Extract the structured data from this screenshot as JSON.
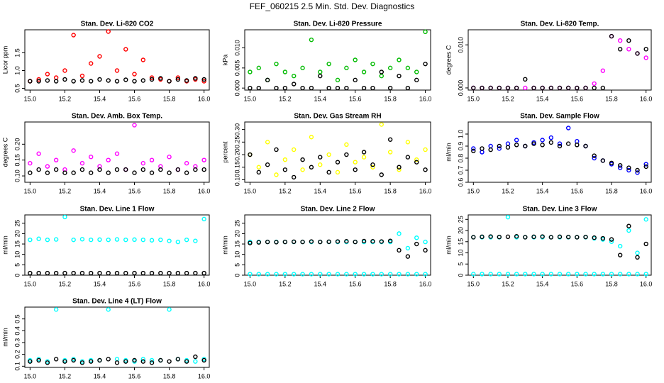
{
  "title": "FEF_060215  2.5 Min. Std. Dev. Diagnostics",
  "chart_data": [
    {
      "type": "scatter",
      "title": "Stan. Dev. Li-820 CO2",
      "ylabel": "Licor ppm",
      "x": [
        15.0,
        15.05,
        15.1,
        15.15,
        15.2,
        15.25,
        15.3,
        15.35,
        15.4,
        15.45,
        15.5,
        15.55,
        15.6,
        15.65,
        15.7,
        15.75,
        15.8,
        15.85,
        15.9,
        15.95,
        16.0
      ],
      "xlim": [
        14.97,
        16.03
      ],
      "xticks": [
        {
          "value": 15.0,
          "label": "15.0"
        },
        15.2,
        15.4,
        15.6,
        15.8,
        {
          "value": 16.0,
          "label": "16.0"
        }
      ],
      "ylim": [
        0.45,
        2.15
      ],
      "yticks": [
        0.5,
        {
          "value": 1.0,
          "label": "1.0"
        },
        1.5
      ],
      "series": [
        {
          "color": "#ff0000",
          "values": [
            0.7,
            0.75,
            0.9,
            0.8,
            1.0,
            2.0,
            0.85,
            1.2,
            1.4,
            2.1,
            1.0,
            1.6,
            0.9,
            1.3,
            0.8,
            0.75,
            0.7,
            0.8,
            0.7,
            0.75,
            0.7
          ]
        },
        {
          "color": "#000000",
          "values": [
            0.7,
            0.7,
            0.72,
            0.7,
            0.75,
            0.7,
            0.72,
            0.7,
            0.75,
            0.72,
            0.7,
            0.74,
            0.7,
            0.72,
            0.75,
            0.78,
            0.7,
            0.75,
            0.72,
            0.78,
            0.75
          ]
        }
      ]
    },
    {
      "type": "scatter",
      "title": "Stan. Dev. Li-820 Pressure",
      "ylabel": "kPa",
      "x": [
        15.0,
        15.05,
        15.1,
        15.15,
        15.2,
        15.25,
        15.3,
        15.35,
        15.4,
        15.45,
        15.5,
        15.55,
        15.6,
        15.65,
        15.7,
        15.75,
        15.8,
        15.85,
        15.9,
        15.95,
        16.0
      ],
      "xlim": [
        14.97,
        16.03
      ],
      "xticks": [
        {
          "value": 15.0,
          "label": "15.0"
        },
        15.2,
        15.4,
        15.6,
        15.8,
        {
          "value": 16.0,
          "label": "16.0"
        }
      ],
      "ylim": [
        -0.0005,
        0.0145
      ],
      "yticks": [
        {
          "value": 0,
          "label": "0.000"
        },
        0.005,
        {
          "value": 0.01,
          "label": "0.010"
        }
      ],
      "series": [
        {
          "color": "#00bb00",
          "values": [
            0.004,
            0.005,
            0.002,
            0.006,
            0.004,
            0.003,
            0.005,
            0.012,
            0.004,
            0.006,
            0.002,
            0.005,
            0.007,
            0.004,
            0.006,
            0.003,
            0.005,
            0.007,
            0.005,
            0.004,
            0.014
          ]
        },
        {
          "color": "#000000",
          "values": [
            0,
            0,
            0.002,
            0,
            0,
            0.001,
            0,
            0,
            0.003,
            0,
            0,
            0,
            0.002,
            0,
            0,
            0.004,
            0,
            0.003,
            0,
            0.002,
            0.006
          ]
        }
      ]
    },
    {
      "type": "scatter",
      "title": "Stan. Dev. Li-820 Temp.",
      "ylabel": "degrees C",
      "x": [
        15.0,
        15.05,
        15.1,
        15.15,
        15.2,
        15.25,
        15.3,
        15.35,
        15.4,
        15.45,
        15.5,
        15.55,
        15.6,
        15.65,
        15.7,
        15.75,
        15.8,
        15.85,
        15.9,
        15.95,
        16.0
      ],
      "xlim": [
        14.97,
        16.03
      ],
      "xticks": [
        {
          "value": 15.0,
          "label": "15.0"
        },
        15.2,
        15.4,
        15.6,
        15.8,
        {
          "value": 16.0,
          "label": "16.0"
        }
      ],
      "ylim": [
        -0.0005,
        0.0135
      ],
      "yticks": [
        {
          "value": 0,
          "label": "0.000"
        },
        {
          "value": 0.01,
          "label": "0.010"
        }
      ],
      "series": [
        {
          "color": "#ff00ff",
          "values": [
            0,
            0,
            0,
            0,
            0,
            0,
            0,
            0,
            0,
            0,
            0,
            0,
            0,
            0,
            0.001,
            0.004,
            0.012,
            0.011,
            0.009,
            0.008,
            0.007
          ]
        },
        {
          "color": "#000000",
          "values": [
            0,
            0,
            0,
            0,
            0,
            0,
            0.002,
            0,
            0,
            0,
            0,
            0,
            0,
            0,
            0,
            0,
            0.012,
            0.009,
            0.011,
            0.008,
            0.009
          ]
        }
      ]
    },
    {
      "type": "scatter",
      "title": "Stan. Dev. Amb. Box Temp.",
      "ylabel": "degrees C",
      "x": [
        15.0,
        15.05,
        15.1,
        15.15,
        15.2,
        15.25,
        15.3,
        15.35,
        15.4,
        15.45,
        15.5,
        15.55,
        15.6,
        15.65,
        15.7,
        15.75,
        15.8,
        15.85,
        15.9,
        15.95,
        16.0
      ],
      "xlim": [
        14.97,
        16.03
      ],
      "xticks": [
        {
          "value": 15.0,
          "label": "15.0"
        },
        15.2,
        15.4,
        15.6,
        15.8,
        {
          "value": 16.0,
          "label": "16.0"
        }
      ],
      "ylim": [
        0.08,
        0.27
      ],
      "yticks": [
        {
          "value": 0.1,
          "label": "0.10"
        },
        0.15,
        {
          "value": 0.2,
          "label": "0.20"
        }
      ],
      "series": [
        {
          "color": "#ff00ff",
          "values": [
            0.14,
            0.17,
            0.13,
            0.15,
            0.12,
            0.18,
            0.14,
            0.16,
            0.13,
            0.15,
            0.17,
            0.12,
            0.26,
            0.14,
            0.15,
            0.13,
            0.16,
            0.12,
            0.14,
            0.13,
            0.15
          ]
        },
        {
          "color": "#000000",
          "values": [
            0.11,
            0.12,
            0.11,
            0.12,
            0.11,
            0.11,
            0.12,
            0.11,
            0.12,
            0.11,
            0.12,
            0.12,
            0.11,
            0.12,
            0.11,
            0.12,
            0.11,
            0.12,
            0.11,
            0.12,
            0.12
          ]
        }
      ]
    },
    {
      "type": "scatter",
      "title": "Stan. Dev. Gas Stream RH",
      "ylabel": "percent",
      "x": [
        15.0,
        15.05,
        15.1,
        15.15,
        15.2,
        15.25,
        15.3,
        15.35,
        15.4,
        15.45,
        15.5,
        15.55,
        15.6,
        15.65,
        15.7,
        15.75,
        15.8,
        15.85,
        15.9,
        15.95,
        16.0
      ],
      "xlim": [
        14.97,
        16.03
      ],
      "xticks": [
        {
          "value": 15.0,
          "label": "15.0"
        },
        15.2,
        15.4,
        15.6,
        15.8,
        {
          "value": 16.0,
          "label": "16.0"
        }
      ],
      "ylim": [
        0.09,
        0.33
      ],
      "yticks": [
        {
          "value": 0.1,
          "label": "0.10"
        },
        0.15,
        {
          "value": 0.2,
          "label": "0.20"
        },
        0.25,
        {
          "value": 0.3,
          "label": "0.30"
        }
      ],
      "series": [
        {
          "color": "#ffff00",
          "values": [
            0.2,
            0.15,
            0.25,
            0.12,
            0.18,
            0.22,
            0.14,
            0.27,
            0.16,
            0.2,
            0.13,
            0.24,
            0.17,
            0.19,
            0.15,
            0.32,
            0.21,
            0.14,
            0.25,
            0.18,
            0.22
          ]
        },
        {
          "color": "#000000",
          "values": [
            0.2,
            0.13,
            0.16,
            0.22,
            0.14,
            0.11,
            0.18,
            0.15,
            0.19,
            0.13,
            0.17,
            0.2,
            0.14,
            0.21,
            0.16,
            0.12,
            0.26,
            0.15,
            0.19,
            0.17,
            0.14
          ]
        }
      ]
    },
    {
      "type": "scatter",
      "title": "Stan. Dev. Sample Flow",
      "ylabel": "ml/min",
      "x": [
        15.0,
        15.05,
        15.1,
        15.15,
        15.2,
        15.25,
        15.3,
        15.35,
        15.4,
        15.45,
        15.5,
        15.55,
        15.6,
        15.65,
        15.7,
        15.75,
        15.8,
        15.85,
        15.9,
        15.95,
        16.0
      ],
      "xlim": [
        14.97,
        16.03
      ],
      "xticks": [
        {
          "value": 15.0,
          "label": "15.0"
        },
        15.2,
        15.4,
        15.6,
        15.8,
        {
          "value": 16.0,
          "label": "16.0"
        }
      ],
      "ylim": [
        0.6,
        1.1
      ],
      "yticks": [
        0.6,
        0.7,
        0.8,
        0.9,
        {
          "value": 1.0,
          "label": "1.0"
        }
      ],
      "series": [
        {
          "color": "#0000ff",
          "values": [
            0.88,
            0.85,
            0.9,
            0.88,
            0.92,
            0.95,
            0.9,
            0.93,
            0.95,
            0.97,
            0.92,
            1.05,
            0.94,
            0.9,
            0.8,
            0.78,
            0.75,
            0.72,
            0.7,
            0.68,
            0.75
          ]
        },
        {
          "color": "#000000",
          "values": [
            0.86,
            0.88,
            0.87,
            0.9,
            0.89,
            0.91,
            0.9,
            0.92,
            0.91,
            0.93,
            0.9,
            0.92,
            0.91,
            0.9,
            0.82,
            0.78,
            0.76,
            0.74,
            0.72,
            0.7,
            0.73
          ]
        }
      ]
    },
    {
      "type": "scatter",
      "title": "Stan. Dev. Line 1 Flow",
      "ylabel": "ml/min",
      "x": [
        15.0,
        15.05,
        15.1,
        15.15,
        15.2,
        15.25,
        15.3,
        15.35,
        15.4,
        15.45,
        15.5,
        15.55,
        15.6,
        15.65,
        15.7,
        15.75,
        15.8,
        15.85,
        15.9,
        15.95,
        16.0
      ],
      "xlim": [
        14.97,
        16.03
      ],
      "xticks": [
        {
          "value": 15.0,
          "label": "15.0"
        },
        15.2,
        15.4,
        15.6,
        15.8,
        {
          "value": 16.0,
          "label": "16.0"
        }
      ],
      "ylim": [
        0,
        29
      ],
      "yticks": [
        0,
        5,
        10,
        15,
        20,
        25
      ],
      "series": [
        {
          "color": "#00ffff",
          "values": [
            17,
            17.5,
            17,
            17.2,
            28,
            17,
            17.3,
            17,
            17.1,
            17,
            17.2,
            17,
            17.1,
            17,
            16.8,
            17,
            16.5,
            16,
            17,
            16.5,
            27
          ]
        },
        {
          "color": "#000000",
          "values": [
            1,
            1,
            1,
            1,
            1,
            1,
            1,
            1,
            1,
            1,
            1,
            1,
            1,
            1,
            1,
            1,
            1,
            1,
            1,
            1,
            1
          ]
        }
      ]
    },
    {
      "type": "scatter",
      "title": "Stan. Dev. Line 2 Flow",
      "ylabel": "ml/min",
      "x": [
        15.0,
        15.05,
        15.1,
        15.15,
        15.2,
        15.25,
        15.3,
        15.35,
        15.4,
        15.45,
        15.5,
        15.55,
        15.6,
        15.65,
        15.7,
        15.75,
        15.8,
        15.85,
        15.9,
        15.95,
        16.0
      ],
      "xlim": [
        14.97,
        16.03
      ],
      "xticks": [
        {
          "value": 15.0,
          "label": "15.0"
        },
        15.2,
        15.4,
        15.6,
        15.8,
        {
          "value": 16.0,
          "label": "16.0"
        }
      ],
      "ylim": [
        0,
        29
      ],
      "yticks": [
        0,
        5,
        10,
        15,
        20,
        25
      ],
      "series": [
        {
          "color": "#00ffff",
          "values": [
            16,
            16,
            16,
            16,
            16,
            16,
            16,
            16,
            16,
            16,
            16,
            16,
            16,
            16,
            16,
            16,
            16,
            20,
            13,
            18,
            16
          ]
        },
        {
          "color": "#00ffff",
          "values": [
            0.5,
            0.5,
            0.5,
            0.5,
            0.5,
            0.5,
            0.5,
            0.5,
            0.5,
            0.5,
            0.5,
            0.5,
            0.5,
            0.5,
            0.5,
            0.5,
            0.5,
            0.5,
            0.5,
            0.5,
            0.5
          ]
        },
        {
          "color": "#000000",
          "values": [
            15.5,
            15.8,
            16,
            15.9,
            16,
            16.1,
            16,
            16.2,
            16,
            16.1,
            16.2,
            16.3,
            16,
            16.4,
            16.3,
            16.2,
            16.5,
            12,
            9,
            15,
            12
          ]
        }
      ]
    },
    {
      "type": "scatter",
      "title": "Stan. Dev. Line 3 Flow",
      "ylabel": "ml/min",
      "x": [
        15.0,
        15.05,
        15.1,
        15.15,
        15.2,
        15.25,
        15.3,
        15.35,
        15.4,
        15.45,
        15.5,
        15.55,
        15.6,
        15.65,
        15.7,
        15.75,
        15.8,
        15.85,
        15.9,
        15.95,
        16.0
      ],
      "xlim": [
        14.97,
        16.03
      ],
      "xticks": [
        {
          "value": 15.0,
          "label": "15.0"
        },
        15.2,
        15.4,
        15.6,
        15.8,
        {
          "value": 16.0,
          "label": "16.0"
        }
      ],
      "ylim": [
        0,
        27
      ],
      "yticks": [
        0,
        5,
        10,
        15,
        20,
        25
      ],
      "series": [
        {
          "color": "#00ffff",
          "values": [
            17,
            17,
            17,
            17,
            26,
            17,
            17,
            17,
            17,
            17,
            17,
            17,
            17,
            17,
            16.5,
            16,
            15,
            13,
            20,
            10,
            25
          ]
        },
        {
          "color": "#00ffff",
          "values": [
            0.5,
            0.5,
            0.5,
            0.5,
            0.5,
            0.5,
            0.5,
            0.5,
            0.5,
            0.5,
            0.5,
            0.5,
            0.5,
            0.5,
            0.5,
            0.5,
            0.5,
            0.5,
            0.5,
            0.5,
            0.5
          ]
        },
        {
          "color": "#000000",
          "values": [
            17,
            17.2,
            17.3,
            17.1,
            17.2,
            17.4,
            17,
            17.2,
            17.3,
            17,
            17.2,
            17.1,
            17,
            17.1,
            16.8,
            16.5,
            16,
            9,
            22,
            8,
            14
          ]
        }
      ]
    },
    {
      "type": "scatter",
      "title": "Stan. Dev. Line 4 (LT) Flow",
      "ylabel": "ml/min",
      "x": [
        15.0,
        15.05,
        15.1,
        15.15,
        15.2,
        15.25,
        15.3,
        15.35,
        15.4,
        15.45,
        15.5,
        15.55,
        15.6,
        15.65,
        15.7,
        15.75,
        15.8,
        15.85,
        15.9,
        15.95,
        16.0
      ],
      "xlim": [
        14.97,
        16.03
      ],
      "xticks": [
        {
          "value": 15.0,
          "label": "15.0"
        },
        15.2,
        15.4,
        15.6,
        15.8,
        {
          "value": 16.0,
          "label": "16.0"
        }
      ],
      "ylim": [
        0.09,
        0.6
      ],
      "yticks": [
        0.1,
        0.2,
        0.3,
        0.4,
        0.5
      ],
      "series": [
        {
          "color": "#00ffff",
          "values": [
            0.15,
            0.16,
            0.14,
            0.58,
            0.15,
            0.16,
            0.14,
            0.15,
            0.15,
            0.58,
            0.16,
            0.15,
            0.14,
            0.16,
            0.15,
            0.15,
            0.58,
            0.16,
            0.15,
            0.14,
            0.16
          ]
        },
        {
          "color": "#000000",
          "values": [
            0.14,
            0.15,
            0.13,
            0.16,
            0.14,
            0.15,
            0.13,
            0.14,
            0.15,
            0.16,
            0.13,
            0.14,
            0.15,
            0.14,
            0.13,
            0.15,
            0.14,
            0.16,
            0.14,
            0.18,
            0.15
          ]
        }
      ]
    }
  ]
}
